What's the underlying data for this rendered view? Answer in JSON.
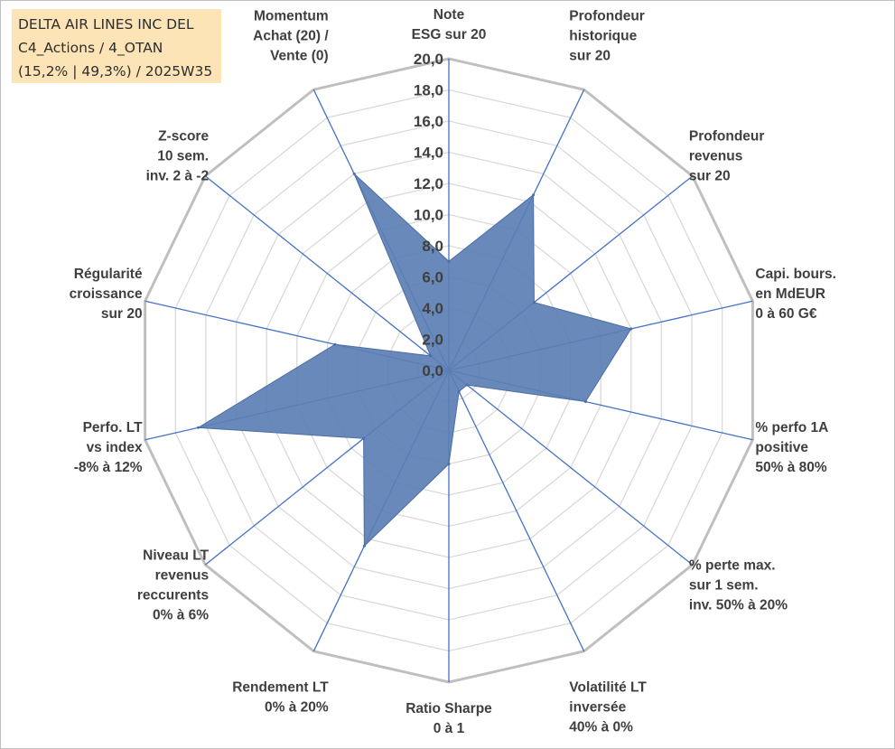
{
  "title_box": {
    "line1": "DELTA AIR LINES INC DEL",
    "line2": "C4_Actions / 4_OTAN",
    "line3": "(15,2% | 49,3%) / 2025W35"
  },
  "chart_data": {
    "type": "radar",
    "categories": [
      [
        "Note",
        "ESG sur 20"
      ],
      [
        "Profondeur",
        "historique",
        "sur 20"
      ],
      [
        "Profondeur",
        "revenus",
        "sur 20"
      ],
      [
        "Capi. bours.",
        "en MdEUR",
        "0 à 60 G€"
      ],
      [
        "% perfo 1A",
        "positive",
        "50% à 80%"
      ],
      [
        "% perte max.",
        "sur 1 sem.",
        "inv. 50% à 20%"
      ],
      [
        "Volatilité LT",
        "inversée",
        "40% à 0%"
      ],
      [
        "Ratio Sharpe",
        "0 à 1"
      ],
      [
        "Rendement LT",
        "0% à 20%"
      ],
      [
        "Niveau LT",
        "revenus",
        "reccurents",
        "0% à 6%"
      ],
      [
        "Perfo. LT",
        "vs index",
        "-8% à 12%"
      ],
      [
        "Régularité",
        "croissance",
        "sur 20"
      ],
      [
        "Z-score",
        "10 sem.",
        "inv. 2 à -2"
      ],
      [
        "Momentum",
        "Achat (20) /",
        "Vente (0)"
      ]
    ],
    "series": [
      {
        "values": [
          7.0,
          12.5,
          7.0,
          12.0,
          9.0,
          1.5,
          1.5,
          6.0,
          12.5,
          7.0,
          16.5,
          7.5,
          1.5,
          14.0
        ]
      }
    ],
    "tick_labels": [
      "0,0",
      "2,0",
      "4,0",
      "6,0",
      "8,0",
      "10,0",
      "12,0",
      "14,0",
      "16,0",
      "18,0",
      "20,0"
    ],
    "rmin": 0,
    "rmax": 20,
    "rstep": 2,
    "colors": {
      "series_fill": "#5b7fb3",
      "series_stroke": "#4a6fa5",
      "spoke": "#4472c4",
      "outer_ring": "#bfbfbf",
      "inner_ring": "#d9d9d9",
      "title_bg": "#fce4b6"
    }
  }
}
